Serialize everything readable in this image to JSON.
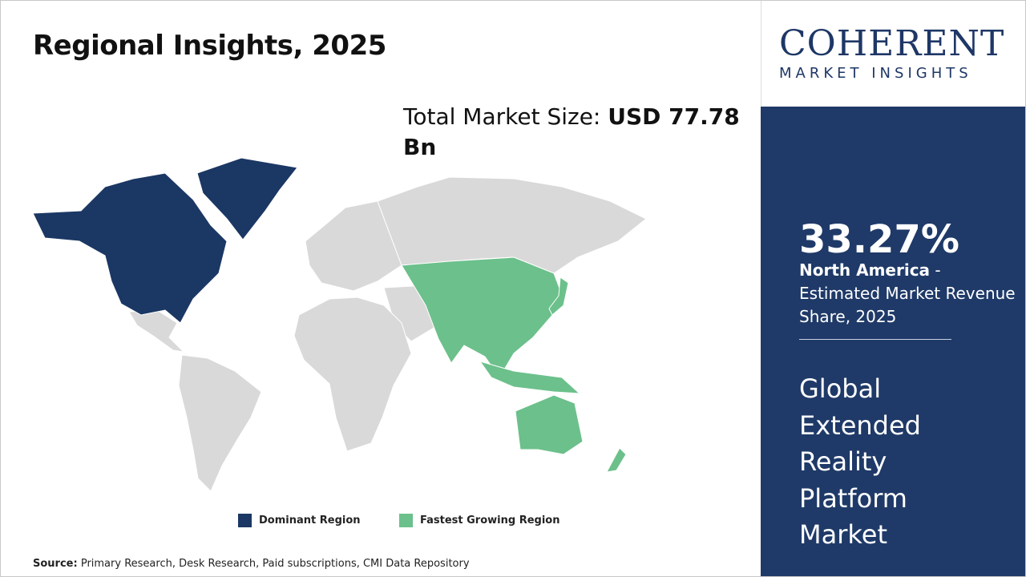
{
  "header": {
    "title": "Regional Insights, 2025"
  },
  "market_size": {
    "label": "Total Market Size:",
    "value": "USD 77.78 Bn"
  },
  "legend": [
    "Dominant Region",
    "Fastest Growing Region"
  ],
  "source": {
    "label": "Source:",
    "text": "Primary Research, Desk Research, Paid subscriptions, CMI Data Repository"
  },
  "logo": {
    "name": "COHERENT",
    "tagline": "MARKET INSIGHTS"
  },
  "sidebar": {
    "share": "33.27%",
    "region": "North America",
    "description": "- Estimated Market Revenue Share, 2025",
    "market": "Global Extended Reality Platform Market"
  }
}
